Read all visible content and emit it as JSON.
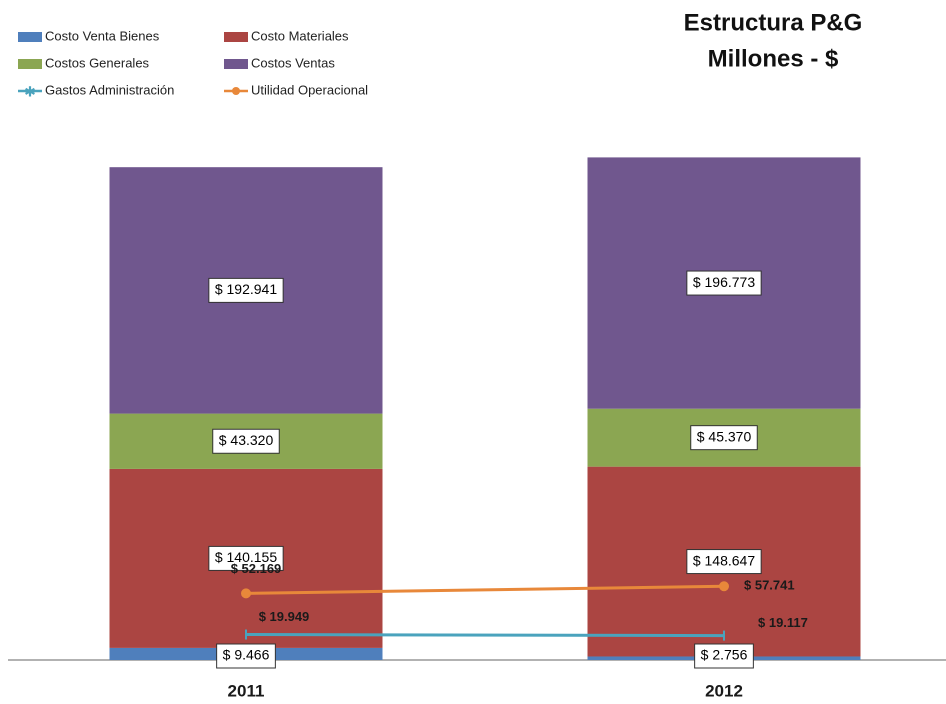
{
  "chart_data": {
    "type": "stacked-bar-line",
    "title": "Estructura P&G",
    "subtitle": "Millones - $",
    "categories": [
      "2011",
      "2012"
    ],
    "ylim": [
      0,
      415000
    ],
    "legend": "top-left",
    "series": [
      {
        "name": "Costo Venta Bienes",
        "type": "bar",
        "color": "#4f7fbc",
        "values": [
          9466,
          2756
        ],
        "value_labels": [
          "$ 9.466",
          "$ 2.756"
        ]
      },
      {
        "name": "Costo Materiales",
        "type": "bar",
        "color": "#ab4542",
        "values": [
          140155,
          148647
        ],
        "value_labels": [
          "$ 140.155",
          "$ 148.647"
        ]
      },
      {
        "name": "Costos Generales",
        "type": "bar",
        "color": "#8ba652",
        "values": [
          43320,
          45370
        ],
        "value_labels": [
          "$ 43.320",
          "$ 45.370"
        ]
      },
      {
        "name": "Costos Ventas",
        "type": "bar",
        "color": "#70578e",
        "values": [
          192941,
          196773
        ],
        "value_labels": [
          "$ 192.941",
          "$ 196.773"
        ]
      },
      {
        "name": "Gastos Administración",
        "type": "line",
        "color": "#4aa3bd",
        "values": [
          19949,
          19117
        ],
        "value_labels": [
          "$ 19.949",
          "$ 19.117"
        ]
      },
      {
        "name": "Utilidad Operacional",
        "type": "line",
        "color": "#e8883a",
        "values": [
          52169,
          57741
        ],
        "value_labels": [
          "$ 52.169",
          "$ 57.741"
        ]
      }
    ]
  }
}
